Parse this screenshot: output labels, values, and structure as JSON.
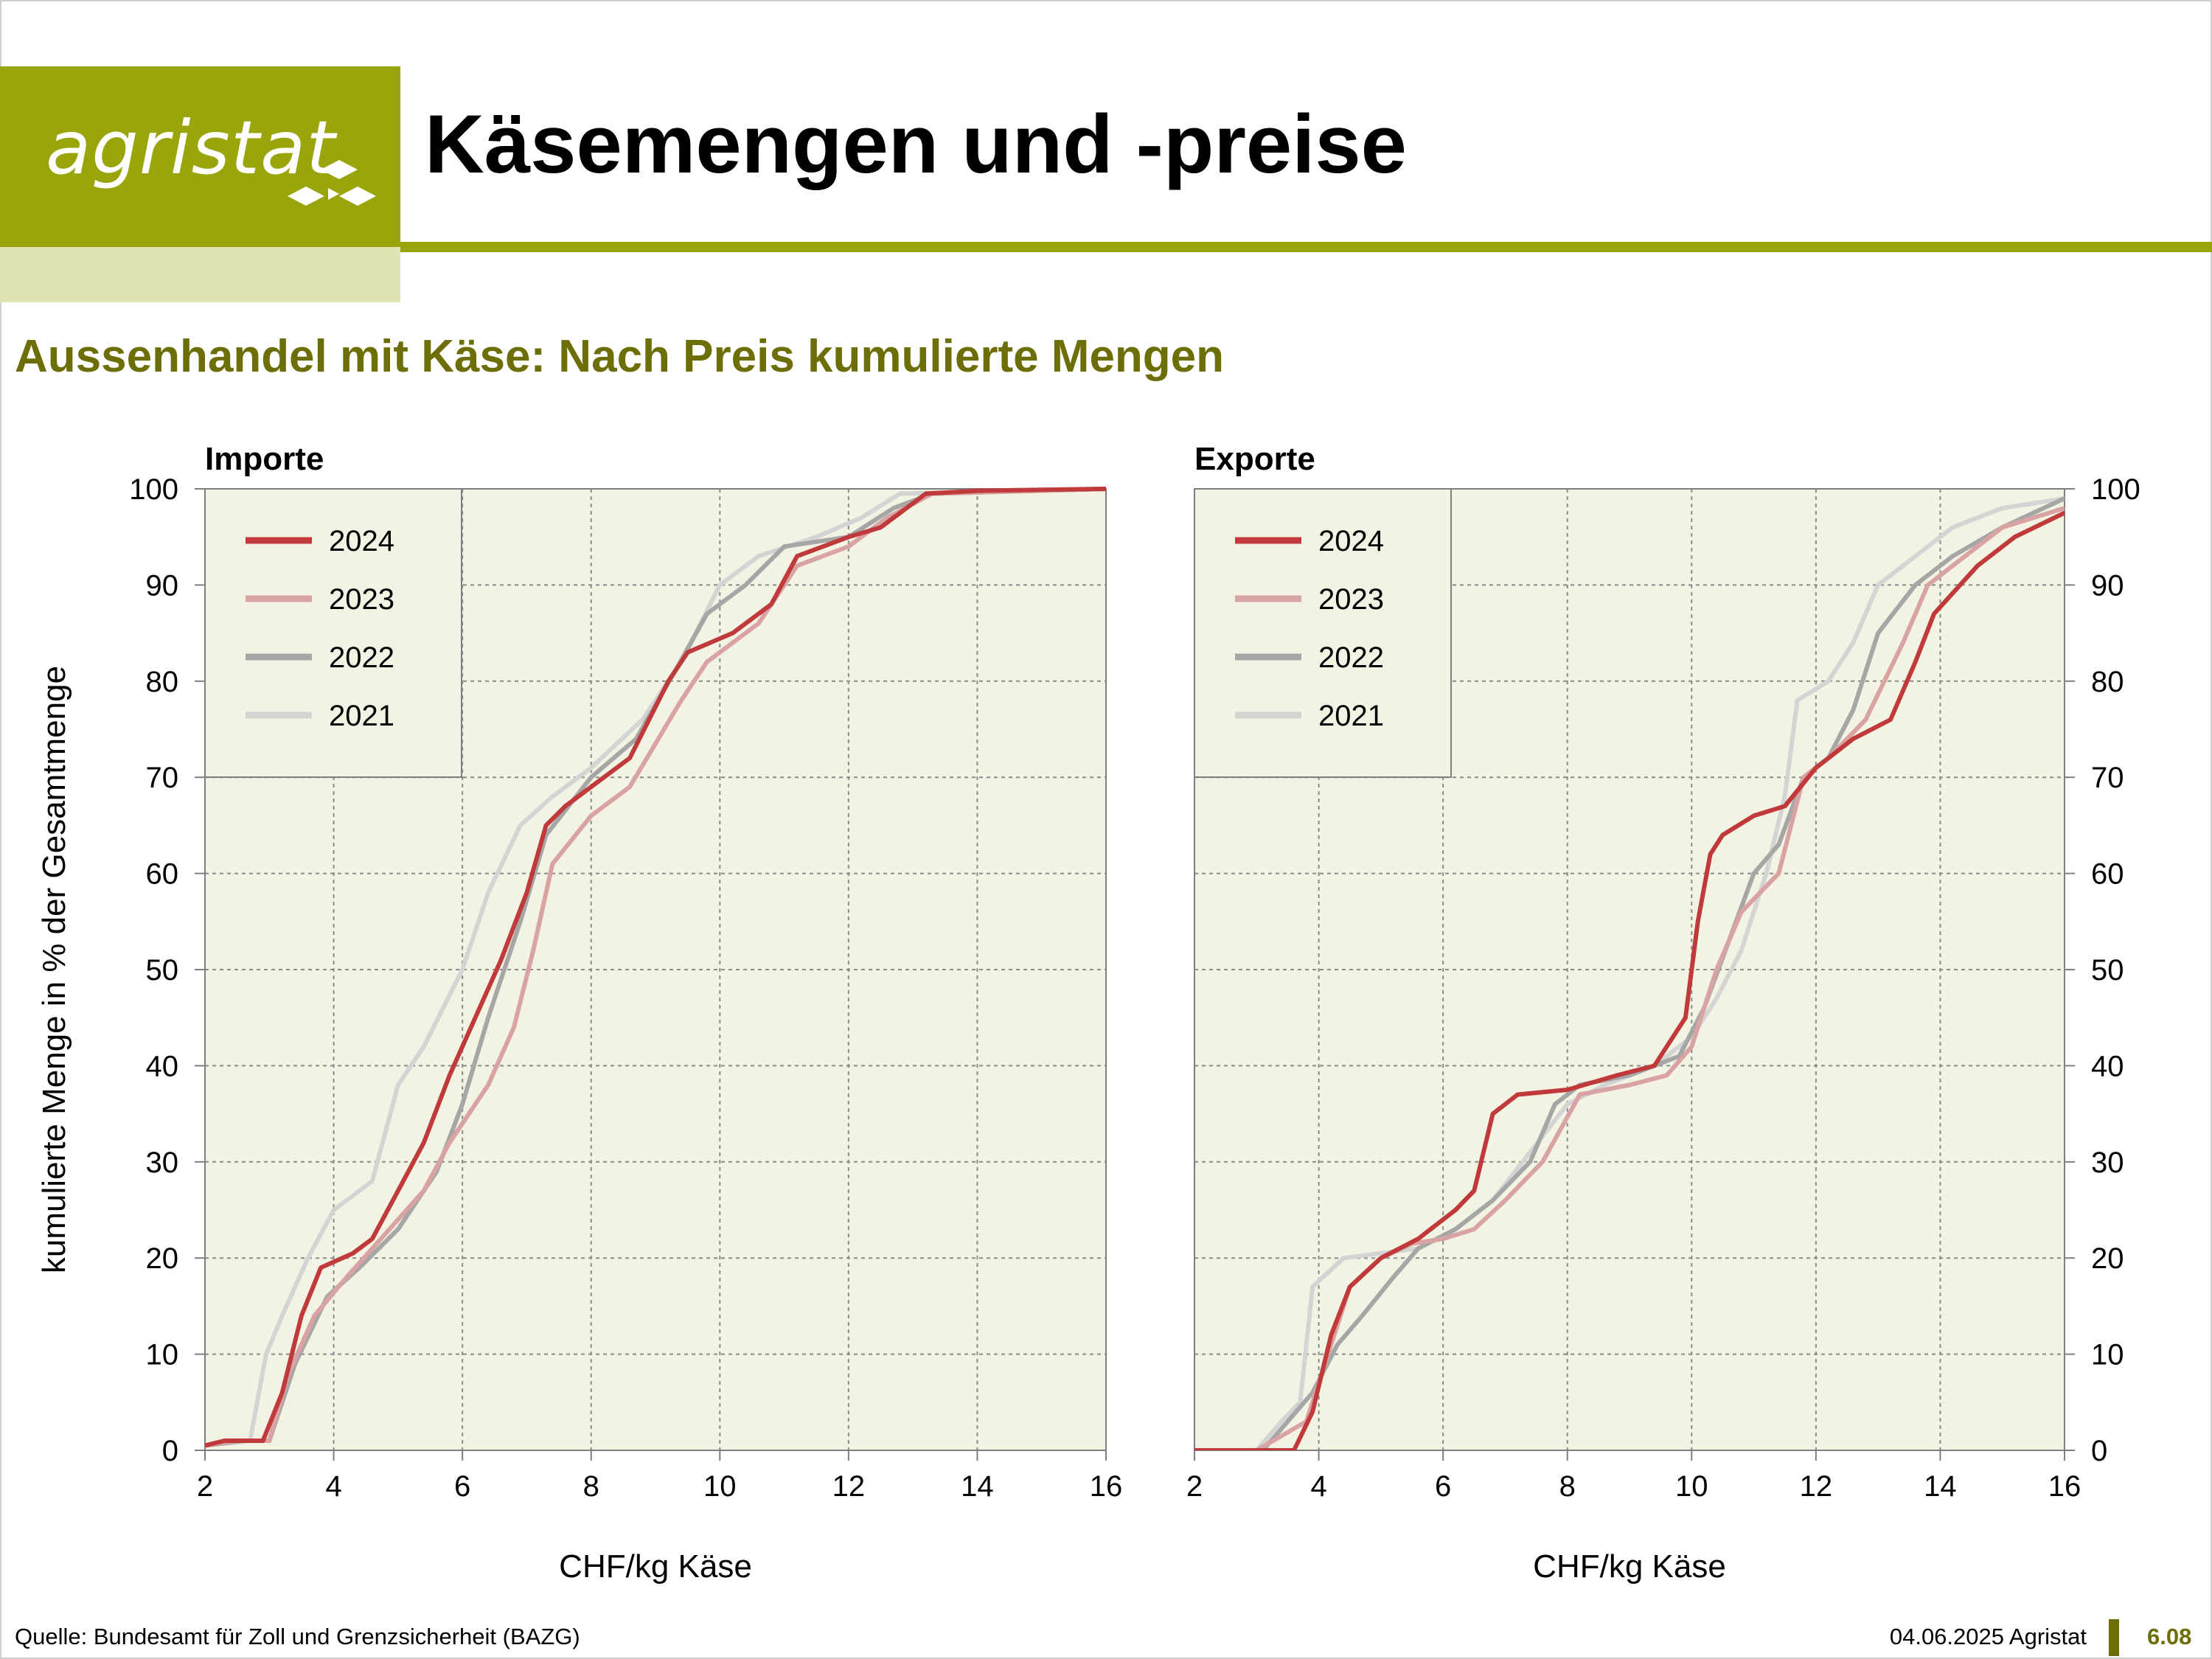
{
  "logo": {
    "text": "agristat"
  },
  "header": {
    "title": "Käsemengen und -preise"
  },
  "subtitle": "Aussenhandel mit Käse: Nach Preis kumulierte Mengen",
  "footer": {
    "source": "Quelle: Bundesamt für Zoll und Grenzsicherheit (BAZG)",
    "date": "04.06.2025 Agristat",
    "page": "6.08"
  },
  "colors": {
    "brand": "#9aa40b",
    "brand_light": "#e0e3b4",
    "title_green": "#6d6e08",
    "plot_bg": "#f3f3e3",
    "s2024": "#c0393b",
    "s2023": "#d9a3a3",
    "s2022": "#a6a6a6",
    "s2021": "#d4d4d4"
  },
  "chart_data": [
    {
      "type": "line",
      "title": "Importe",
      "xlabel": "CHF/kg Käse",
      "ylabel": "kumulierte Menge in % der Gesamtmenge",
      "xlim": [
        2,
        16
      ],
      "ylim": [
        0,
        100
      ],
      "xticks": [
        2,
        4,
        6,
        8,
        10,
        12,
        14,
        16
      ],
      "yticks": [
        0,
        10,
        20,
        30,
        40,
        50,
        60,
        70,
        80,
        90,
        100
      ],
      "grid": true,
      "legend": "top-left",
      "series": [
        {
          "name": "2024",
          "x": [
            2,
            2.3,
            2.9,
            3.2,
            3.5,
            3.8,
            4.3,
            4.6,
            5.0,
            5.4,
            5.8,
            6.2,
            6.6,
            7.0,
            7.3,
            7.6,
            8.0,
            8.6,
            9.2,
            9.5,
            10.2,
            10.8,
            11.2,
            12.0,
            12.5,
            13.2,
            14,
            16
          ],
          "y": [
            0.5,
            1,
            1,
            6,
            14,
            19,
            20.5,
            22,
            27,
            32,
            39,
            45,
            51,
            58,
            65,
            67,
            69,
            72,
            80,
            83,
            85,
            88,
            93,
            95,
            96,
            99.5,
            99.8,
            100
          ]
        },
        {
          "name": "2023",
          "x": [
            2,
            2.5,
            3.0,
            3.3,
            3.7,
            4.2,
            4.6,
            5.0,
            5.4,
            5.8,
            6.4,
            6.8,
            7.1,
            7.4,
            8.0,
            8.6,
            9.4,
            9.8,
            10.6,
            11.2,
            12.0,
            12.6,
            13.3,
            16
          ],
          "y": [
            0.5,
            1,
            1,
            8,
            14,
            18,
            21,
            24,
            27,
            32,
            38,
            44,
            52,
            61,
            66,
            69,
            78,
            82,
            86,
            92,
            94,
            97,
            99.5,
            100
          ]
        },
        {
          "name": "2022",
          "x": [
            2,
            2.6,
            3.0,
            3.4,
            3.9,
            4.4,
            5.0,
            5.6,
            6.0,
            6.4,
            6.9,
            7.3,
            8.0,
            8.7,
            9.3,
            9.8,
            10.4,
            11.0,
            12.0,
            12.7,
            13.3,
            16
          ],
          "y": [
            0.5,
            1,
            1,
            9,
            16,
            19,
            23,
            29,
            36,
            45,
            55,
            64,
            70,
            74,
            81,
            87,
            90,
            94,
            95,
            98,
            99.5,
            100
          ]
        },
        {
          "name": "2021",
          "x": [
            2,
            2.7,
            2.95,
            3.2,
            3.6,
            4.0,
            4.6,
            5.0,
            5.4,
            6.0,
            6.4,
            6.9,
            7.4,
            8.0,
            8.8,
            9.4,
            10.0,
            10.6,
            11.5,
            12.2,
            12.8,
            16
          ],
          "y": [
            0.5,
            1,
            10,
            14,
            20,
            25,
            28,
            38,
            42,
            50,
            58,
            65,
            68,
            71,
            76,
            82,
            90,
            93,
            95,
            97,
            99.5,
            100
          ]
        }
      ]
    },
    {
      "type": "line",
      "title": "Exporte",
      "xlabel": "CHF/kg Käse",
      "ylabel": "",
      "xlim": [
        2,
        16
      ],
      "ylim": [
        0,
        100
      ],
      "xticks": [
        2,
        4,
        6,
        8,
        10,
        12,
        14,
        16
      ],
      "yticks": [
        0,
        10,
        20,
        30,
        40,
        50,
        60,
        70,
        80,
        90,
        100
      ],
      "grid": true,
      "legend": "top-left",
      "series": [
        {
          "name": "2024",
          "x": [
            2,
            3.6,
            3.9,
            4.2,
            4.5,
            5.0,
            5.6,
            6.2,
            6.5,
            6.8,
            7.2,
            8.0,
            8.8,
            9.4,
            9.9,
            10.1,
            10.3,
            10.5,
            11.0,
            11.5,
            12.0,
            12.6,
            13.2,
            13.6,
            13.9,
            14.6,
            15.2,
            16
          ],
          "y": [
            0,
            0,
            4,
            12,
            17,
            20,
            22,
            25,
            27,
            35,
            37,
            37.5,
            39,
            40,
            45,
            55,
            62,
            64,
            66,
            67,
            71,
            74,
            76,
            82,
            87,
            92,
            95,
            97.5
          ]
        },
        {
          "name": "2023",
          "x": [
            2,
            3.0,
            3.8,
            4.2,
            4.5,
            5.0,
            5.5,
            6.0,
            6.5,
            7.0,
            7.6,
            8.2,
            9.0,
            9.6,
            10.0,
            10.4,
            10.8,
            11.4,
            11.8,
            12.2,
            12.8,
            13.4,
            13.8,
            14.4,
            15.0,
            16
          ],
          "y": [
            0,
            0,
            3,
            11,
            17,
            20,
            21.5,
            22,
            23,
            26,
            30,
            37,
            38,
            39,
            42,
            50,
            56,
            60,
            70,
            72,
            76,
            84,
            90,
            93,
            96,
            98
          ]
        },
        {
          "name": "2022",
          "x": [
            2,
            3.1,
            3.9,
            4.3,
            4.7,
            5.2,
            5.6,
            6.2,
            6.8,
            7.4,
            7.8,
            8.2,
            9.0,
            9.8,
            10.2,
            10.6,
            11.0,
            11.4,
            11.8,
            12.2,
            12.6,
            13.0,
            13.6,
            14.2,
            15.0,
            16
          ],
          "y": [
            0,
            0,
            6,
            11,
            14,
            18,
            21,
            23,
            26,
            30,
            36,
            38,
            39,
            41,
            46,
            53,
            60,
            63,
            70,
            72,
            77,
            85,
            90,
            93,
            96,
            99
          ]
        },
        {
          "name": "2021",
          "x": [
            2,
            3.0,
            3.4,
            3.7,
            3.9,
            4.4,
            5.0,
            5.6,
            6.2,
            6.8,
            7.4,
            8.0,
            8.6,
            9.4,
            10.0,
            10.4,
            10.8,
            11.2,
            11.5,
            11.7,
            12.2,
            12.6,
            13.0,
            13.6,
            14.2,
            15.0,
            16
          ],
          "y": [
            0,
            0,
            3,
            5,
            17,
            20,
            20.5,
            21,
            23,
            26,
            31,
            36,
            38,
            40,
            43,
            47,
            52,
            60,
            68,
            78,
            80,
            84,
            90,
            93,
            96,
            98,
            99
          ]
        }
      ]
    }
  ]
}
